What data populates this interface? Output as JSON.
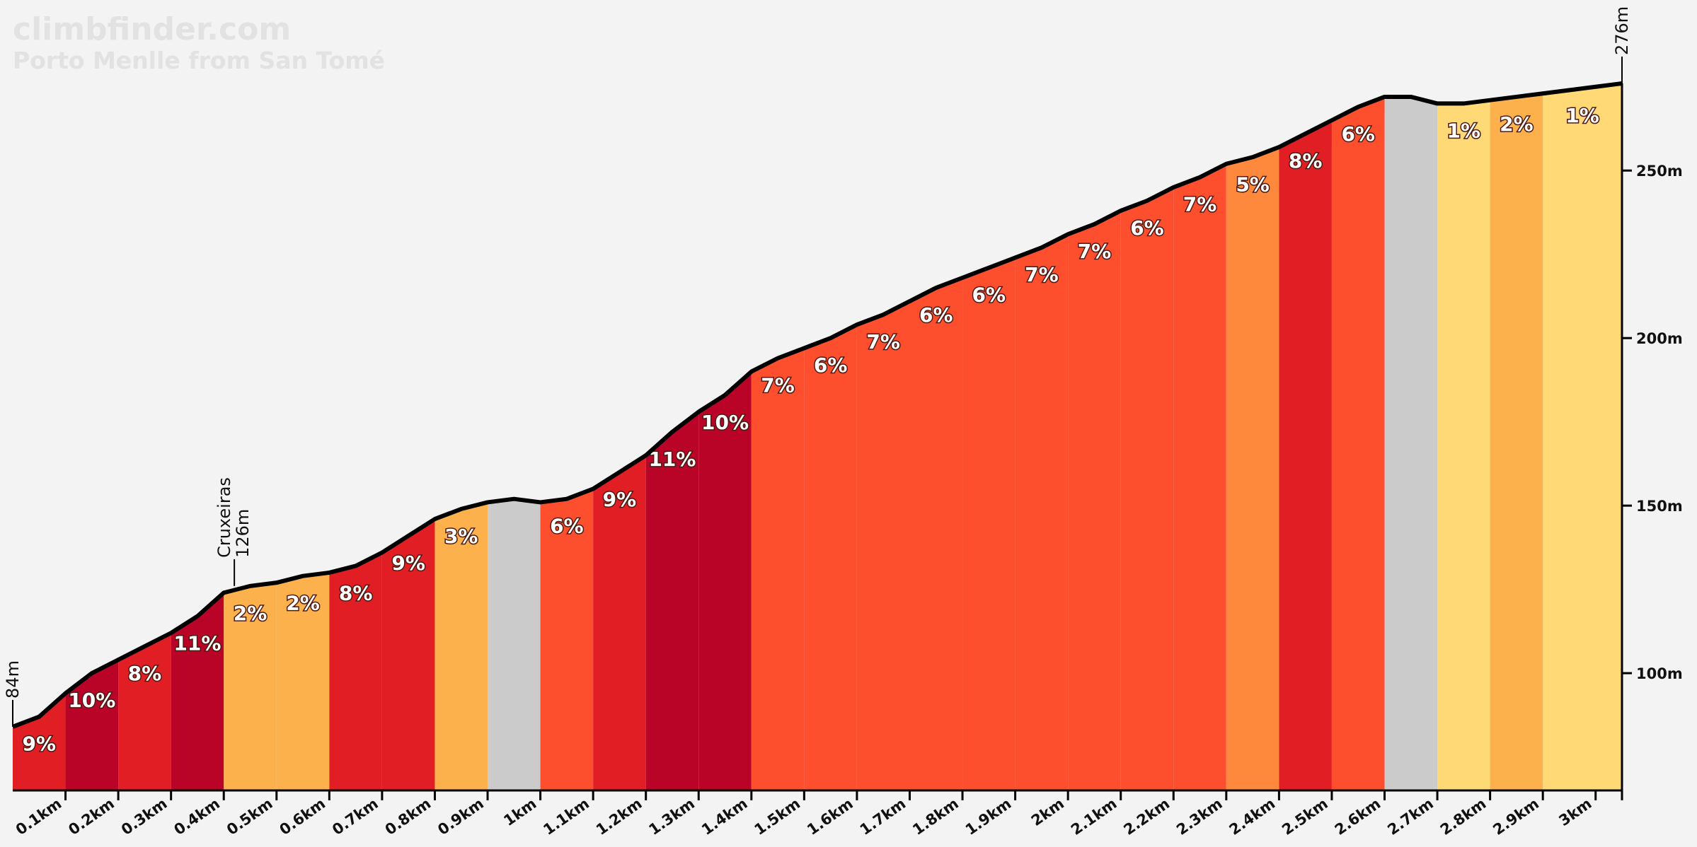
{
  "brand": {
    "site": "climbfinder.com",
    "climb": "Porto Menlle from San Tomé"
  },
  "chart_data": {
    "type": "area",
    "title": "Porto Menlle from San Tomé",
    "xlabel": "",
    "ylabel": "",
    "xlim": [
      0,
      3.05
    ],
    "ylim": [
      65,
      276
    ],
    "x_ticks": [
      {
        "value": 0.1,
        "label": "0.1km"
      },
      {
        "value": 0.2,
        "label": "0.2km"
      },
      {
        "value": 0.3,
        "label": "0.3km"
      },
      {
        "value": 0.4,
        "label": "0.4km"
      },
      {
        "value": 0.5,
        "label": "0.5km"
      },
      {
        "value": 0.6,
        "label": "0.6km"
      },
      {
        "value": 0.7,
        "label": "0.7km"
      },
      {
        "value": 0.8,
        "label": "0.8km"
      },
      {
        "value": 0.9,
        "label": "0.9km"
      },
      {
        "value": 1.0,
        "label": "1km"
      },
      {
        "value": 1.1,
        "label": "1.1km"
      },
      {
        "value": 1.2,
        "label": "1.2km"
      },
      {
        "value": 1.3,
        "label": "1.3km"
      },
      {
        "value": 1.4,
        "label": "1.4km"
      },
      {
        "value": 1.5,
        "label": "1.5km"
      },
      {
        "value": 1.6,
        "label": "1.6km"
      },
      {
        "value": 1.7,
        "label": "1.7km"
      },
      {
        "value": 1.8,
        "label": "1.8km"
      },
      {
        "value": 1.9,
        "label": "1.9km"
      },
      {
        "value": 2.0,
        "label": "2km"
      },
      {
        "value": 2.1,
        "label": "2.1km"
      },
      {
        "value": 2.2,
        "label": "2.2km"
      },
      {
        "value": 2.3,
        "label": "2.3km"
      },
      {
        "value": 2.4,
        "label": "2.4km"
      },
      {
        "value": 2.5,
        "label": "2.5km"
      },
      {
        "value": 2.6,
        "label": "2.6km"
      },
      {
        "value": 2.7,
        "label": "2.7km"
      },
      {
        "value": 2.8,
        "label": "2.8km"
      },
      {
        "value": 2.9,
        "label": "2.9km"
      },
      {
        "value": 3.0,
        "label": "3km"
      }
    ],
    "y_ticks": [
      {
        "value": 100,
        "label": "100m"
      },
      {
        "value": 150,
        "label": "150m"
      },
      {
        "value": 200,
        "label": "200m"
      },
      {
        "value": 250,
        "label": "250m"
      }
    ],
    "profile": [
      [
        0.0,
        84
      ],
      [
        0.05,
        87
      ],
      [
        0.1,
        94
      ],
      [
        0.15,
        100
      ],
      [
        0.2,
        104
      ],
      [
        0.25,
        108
      ],
      [
        0.3,
        112
      ],
      [
        0.35,
        117
      ],
      [
        0.4,
        124
      ],
      [
        0.45,
        126
      ],
      [
        0.5,
        127
      ],
      [
        0.55,
        129
      ],
      [
        0.6,
        130
      ],
      [
        0.65,
        132
      ],
      [
        0.7,
        136
      ],
      [
        0.75,
        141
      ],
      [
        0.8,
        146
      ],
      [
        0.85,
        149
      ],
      [
        0.9,
        151
      ],
      [
        0.95,
        152
      ],
      [
        1.0,
        151
      ],
      [
        1.05,
        152
      ],
      [
        1.1,
        155
      ],
      [
        1.15,
        160
      ],
      [
        1.2,
        165
      ],
      [
        1.25,
        172
      ],
      [
        1.3,
        178
      ],
      [
        1.35,
        183
      ],
      [
        1.4,
        190
      ],
      [
        1.45,
        194
      ],
      [
        1.5,
        197
      ],
      [
        1.55,
        200
      ],
      [
        1.6,
        204
      ],
      [
        1.65,
        207
      ],
      [
        1.7,
        211
      ],
      [
        1.75,
        215
      ],
      [
        1.8,
        218
      ],
      [
        1.85,
        221
      ],
      [
        1.9,
        224
      ],
      [
        1.95,
        227
      ],
      [
        2.0,
        231
      ],
      [
        2.05,
        234
      ],
      [
        2.1,
        238
      ],
      [
        2.15,
        241
      ],
      [
        2.2,
        245
      ],
      [
        2.25,
        248
      ],
      [
        2.3,
        252
      ],
      [
        2.35,
        254
      ],
      [
        2.4,
        257
      ],
      [
        2.45,
        261
      ],
      [
        2.5,
        265
      ],
      [
        2.55,
        269
      ],
      [
        2.6,
        272
      ],
      [
        2.65,
        272
      ],
      [
        2.7,
        270
      ],
      [
        2.75,
        270
      ],
      [
        2.8,
        271
      ],
      [
        2.85,
        272
      ],
      [
        2.9,
        273
      ],
      [
        2.95,
        274
      ],
      [
        3.0,
        275
      ],
      [
        3.05,
        276
      ]
    ],
    "segments": [
      {
        "from": 0.0,
        "to": 0.1,
        "label": "9%",
        "color": "#e01e24"
      },
      {
        "from": 0.1,
        "to": 0.2,
        "label": "10%",
        "color": "#ba0427"
      },
      {
        "from": 0.2,
        "to": 0.3,
        "label": "8%",
        "color": "#e01e24"
      },
      {
        "from": 0.3,
        "to": 0.4,
        "label": "11%",
        "color": "#ba0427"
      },
      {
        "from": 0.4,
        "to": 0.5,
        "label": "2%",
        "color": "#fdb14c"
      },
      {
        "from": 0.5,
        "to": 0.6,
        "label": "2%",
        "color": "#fdb14c"
      },
      {
        "from": 0.6,
        "to": 0.7,
        "label": "8%",
        "color": "#e01e24"
      },
      {
        "from": 0.7,
        "to": 0.8,
        "label": "9%",
        "color": "#e01e24"
      },
      {
        "from": 0.8,
        "to": 0.9,
        "label": "3%",
        "color": "#fdb14c"
      },
      {
        "from": 0.9,
        "to": 1.0,
        "label": "",
        "color": "#cbcbcb"
      },
      {
        "from": 1.0,
        "to": 1.1,
        "label": "6%",
        "color": "#fd4f2e"
      },
      {
        "from": 1.1,
        "to": 1.2,
        "label": "9%",
        "color": "#e01e24"
      },
      {
        "from": 1.2,
        "to": 1.3,
        "label": "11%",
        "color": "#ba0427"
      },
      {
        "from": 1.3,
        "to": 1.4,
        "label": "10%",
        "color": "#ba0427"
      },
      {
        "from": 1.4,
        "to": 1.5,
        "label": "7%",
        "color": "#fd4f2e"
      },
      {
        "from": 1.5,
        "to": 1.6,
        "label": "6%",
        "color": "#fd4f2e"
      },
      {
        "from": 1.6,
        "to": 1.7,
        "label": "7%",
        "color": "#fd4f2e"
      },
      {
        "from": 1.7,
        "to": 1.8,
        "label": "6%",
        "color": "#fd4f2e"
      },
      {
        "from": 1.8,
        "to": 1.9,
        "label": "6%",
        "color": "#fd4f2e"
      },
      {
        "from": 1.9,
        "to": 2.0,
        "label": "7%",
        "color": "#fd4f2e"
      },
      {
        "from": 2.0,
        "to": 2.1,
        "label": "7%",
        "color": "#fd4f2e"
      },
      {
        "from": 2.1,
        "to": 2.2,
        "label": "6%",
        "color": "#fd4f2e"
      },
      {
        "from": 2.2,
        "to": 2.3,
        "label": "7%",
        "color": "#fd4f2e"
      },
      {
        "from": 2.3,
        "to": 2.4,
        "label": "5%",
        "color": "#fe883b"
      },
      {
        "from": 2.4,
        "to": 2.5,
        "label": "8%",
        "color": "#e01e24"
      },
      {
        "from": 2.5,
        "to": 2.6,
        "label": "6%",
        "color": "#fd4f2e"
      },
      {
        "from": 2.6,
        "to": 2.7,
        "label": "",
        "color": "#cbcbcb"
      },
      {
        "from": 2.7,
        "to": 2.8,
        "label": "1%",
        "color": "#fed976"
      },
      {
        "from": 2.8,
        "to": 2.9,
        "label": "2%",
        "color": "#fdb14c"
      },
      {
        "from": 2.9,
        "to": 3.05,
        "label": "1%",
        "color": "#fed976"
      }
    ],
    "annotations": [
      {
        "x": 0.0,
        "y": 84,
        "label": "84m"
      },
      {
        "x": 0.42,
        "y": 126,
        "name": "Cruxeiras",
        "label": "126m"
      },
      {
        "x": 3.05,
        "y": 276,
        "label": "276m"
      }
    ],
    "grid": false,
    "legend": "none"
  }
}
